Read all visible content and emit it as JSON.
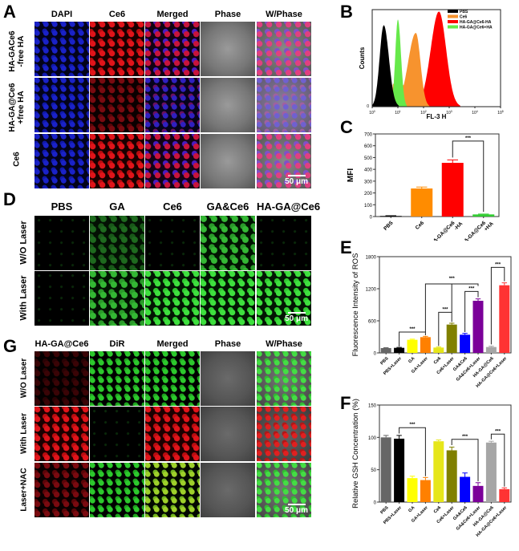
{
  "panels": {
    "A": {
      "label": "A",
      "columns": [
        "DAPI",
        "Ce6",
        "Merged",
        "Phase",
        "W/Phase"
      ],
      "rows": [
        {
          "line1": "HA-GACe6",
          "line2": "-free HA"
        },
        {
          "line1": "HA-GA@Ce6",
          "line2": "+free HA"
        },
        {
          "line1": "Ce6",
          "line2": ""
        }
      ],
      "scale_bar": "50 μm"
    },
    "B": {
      "label": "B"
    },
    "C": {
      "label": "C"
    },
    "D": {
      "label": "D",
      "columns": [
        "PBS",
        "GA",
        "Ce6",
        "GA&Ce6",
        "HA-GA@Ce6"
      ],
      "rows": [
        "W/O Laser",
        "With Laser"
      ],
      "scale_bar": "50 μm"
    },
    "E": {
      "label": "E"
    },
    "F": {
      "label": "F"
    },
    "G": {
      "label": "G",
      "columns": [
        "HA-GA@Ce6",
        "DiR",
        "Merged",
        "Phase",
        "W/Phase"
      ],
      "rows": [
        "W/O Laser",
        "With Laser",
        "Laser+NAC"
      ],
      "scale_bar": "50 μm"
    }
  },
  "chart_data": [
    {
      "panel": "B",
      "type": "area",
      "title": "",
      "xlabel": "FL-3 H",
      "ylabel": "Counts",
      "x_scale": "log",
      "x_ticks": [
        "10^0",
        "10^1",
        "10^2",
        "10^3",
        "10^4",
        "10^5"
      ],
      "y_ticks": [
        "0"
      ],
      "legend": [
        {
          "name": "PBS",
          "color": "#000000"
        },
        {
          "name": "Ce6",
          "color": "#F7932E"
        },
        {
          "name": "HA-GA@Ce6-HA",
          "color": "#FF0000"
        },
        {
          "name": "HA-GA@Ce6+HA",
          "color": "#66E94A"
        }
      ],
      "series": [
        {
          "name": "PBS",
          "peak_x_log": 0.45,
          "peak_rel_height": 0.84
        },
        {
          "name": "HA-GA@Ce6+HA",
          "peak_x_log": 1.0,
          "peak_rel_height": 0.9
        },
        {
          "name": "Ce6",
          "peak_x_log": 1.7,
          "peak_rel_height": 0.76
        },
        {
          "name": "HA-GA@Ce6-HA",
          "peak_x_log": 2.6,
          "peak_rel_height": 0.98
        }
      ],
      "legend_position": "top-right"
    },
    {
      "panel": "C",
      "type": "bar",
      "ylabel": "MFI",
      "xlabel": "",
      "ylim": [
        0,
        700
      ],
      "y_ticks": [
        0,
        100,
        200,
        300,
        400,
        500,
        600,
        700
      ],
      "categories": [
        "PBS",
        "Ce6",
        "HA-GA@Ce6 -HA",
        "HA-GA@Ce6 +HA"
      ],
      "values": [
        5,
        238,
        455,
        18
      ],
      "errors": [
        2,
        12,
        25,
        3
      ],
      "colors": [
        "#000000",
        "#FF8C00",
        "#FF0000",
        "#33CC33"
      ],
      "significance": [
        {
          "from": 2,
          "to": 3,
          "label": "***"
        }
      ]
    },
    {
      "panel": "E",
      "type": "bar",
      "ylabel": "Fluorescence Intensity of ROS",
      "xlabel": "",
      "ylim": [
        0,
        1800
      ],
      "y_ticks": [
        0,
        600,
        1200,
        1800
      ],
      "categories": [
        "PBS",
        "PBS+Laser",
        "GA",
        "GA+Laser",
        "Ce6",
        "Ce6+Laser",
        "GA&Ce6",
        "GA&Ce6+Laser",
        "HA-GA@Ce6",
        "HA-GA@Ce6+Laser"
      ],
      "values": [
        90,
        95,
        245,
        295,
        100,
        530,
        340,
        975,
        110,
        1265
      ],
      "errors": [
        8,
        8,
        12,
        15,
        10,
        25,
        25,
        35,
        15,
        45
      ],
      "colors": [
        "#666666",
        "#000000",
        "#FFFF00",
        "#FF8000",
        "#E6E61A",
        "#808000",
        "#0000FF",
        "#7B0099",
        "#A6A6A6",
        "#FF3333"
      ],
      "significance": [
        {
          "from": 1,
          "to": 3,
          "label": "***"
        },
        {
          "from": 4,
          "to": 5,
          "label": "***"
        },
        {
          "from": 6,
          "to": 7,
          "label": "***"
        },
        {
          "from": 3,
          "to": 7,
          "label": "***"
        },
        {
          "from": 8,
          "to": 9,
          "label": "***"
        }
      ]
    },
    {
      "panel": "F",
      "type": "bar",
      "ylabel": "Relative GSH Concentration (%)",
      "xlabel": "",
      "ylim": [
        0,
        150
      ],
      "y_ticks": [
        0,
        50,
        100,
        150
      ],
      "categories": [
        "PBS",
        "PBS+Laser",
        "GA",
        "GA+Laser",
        "Ce6",
        "Ce6+Laser",
        "GA&Ce6",
        "GA&Ce6+Laser",
        "HA-GA@Ce6",
        "HA-GA@Ce6+Laser"
      ],
      "values": [
        100,
        98,
        37,
        34,
        94,
        80,
        39,
        25,
        92,
        20
      ],
      "errors": [
        3,
        5,
        3,
        4,
        2,
        5,
        6,
        5,
        2,
        2
      ],
      "colors": [
        "#666666",
        "#000000",
        "#FFFF00",
        "#FF8000",
        "#E6E61A",
        "#808000",
        "#0000FF",
        "#7B0099",
        "#A6A6A6",
        "#FF3333"
      ],
      "significance": [
        {
          "from": 1,
          "to": 3,
          "label": "***"
        },
        {
          "from": 5,
          "to": 7,
          "label": "***"
        },
        {
          "from": 8,
          "to": 9,
          "label": "***"
        }
      ]
    }
  ]
}
